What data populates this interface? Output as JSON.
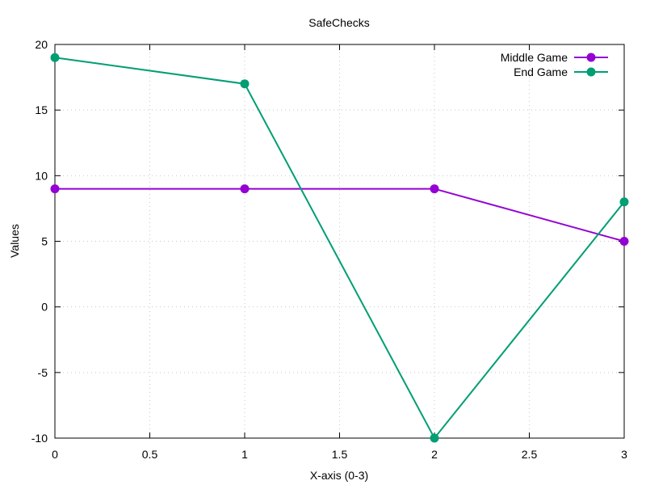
{
  "chart_data": {
    "type": "line",
    "title": "SafeChecks",
    "xlabel": "X-axis (0-3)",
    "ylabel": "Values",
    "xlim": [
      0,
      3
    ],
    "ylim": [
      -10,
      20
    ],
    "x_ticks": [
      0,
      0.5,
      1,
      1.5,
      2,
      2.5,
      3
    ],
    "y_ticks": [
      -10,
      -5,
      0,
      5,
      10,
      15,
      20
    ],
    "grid": true,
    "legend_position": "top-right",
    "x": [
      0,
      1,
      2,
      3
    ],
    "series": [
      {
        "name": "Middle Game",
        "values": [
          9,
          9,
          9,
          5
        ],
        "color": "#9400d3"
      },
      {
        "name": "End Game",
        "values": [
          19,
          17,
          -10,
          8
        ],
        "color": "#009e73"
      }
    ]
  }
}
